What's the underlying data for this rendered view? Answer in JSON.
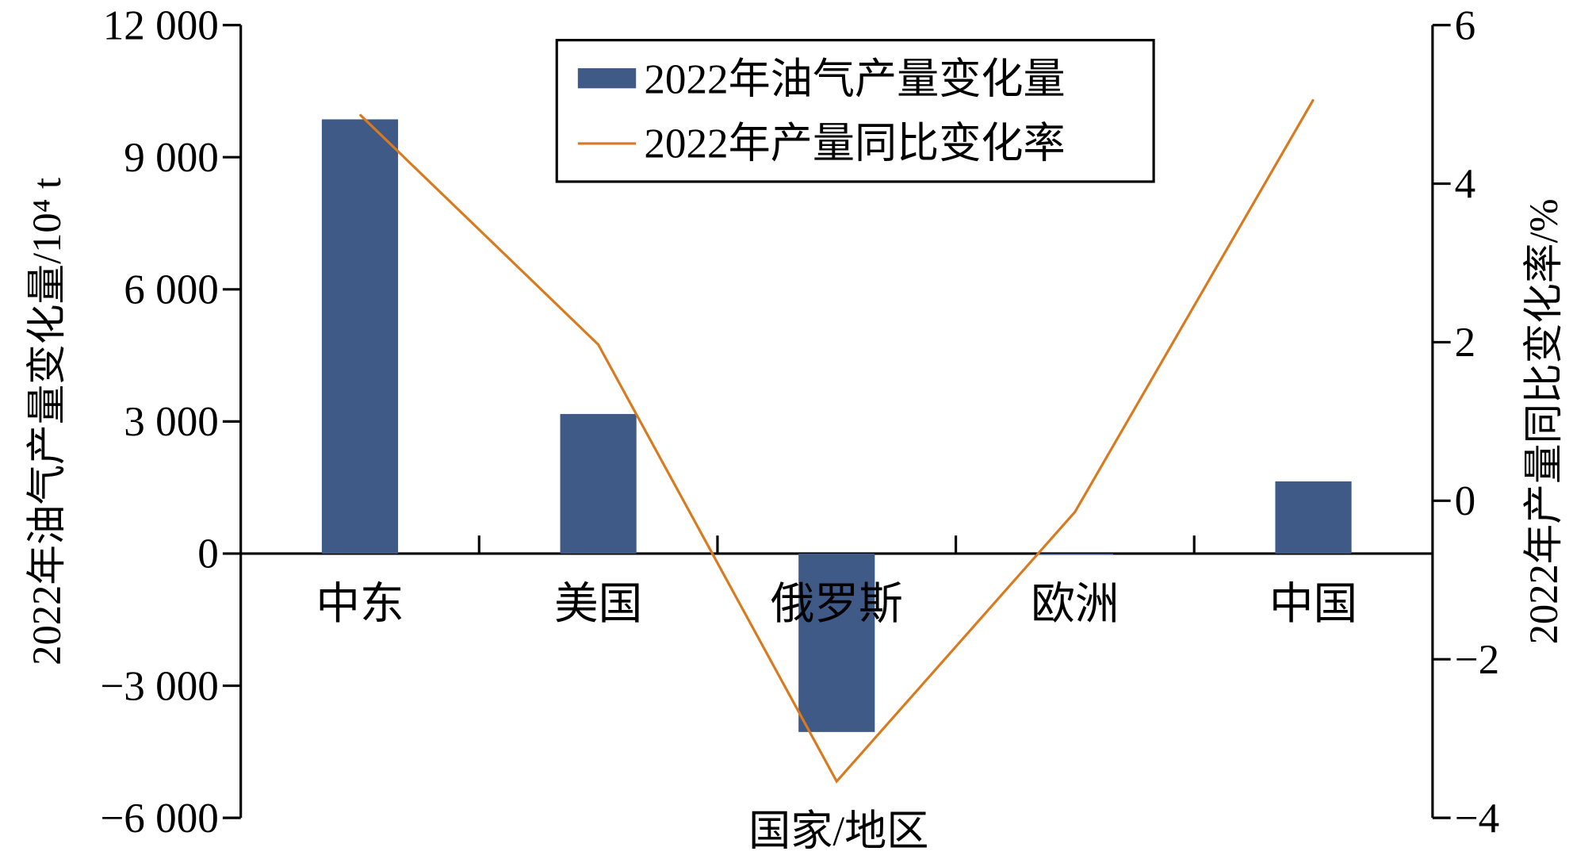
{
  "chart_data": {
    "type": "bar+line",
    "categories": [
      "中东",
      "美国",
      "俄罗斯",
      "欧洲",
      "中国"
    ],
    "xlabel": "国家/地区",
    "ylabel_left": "2022年油气产量变化量/10⁴ t",
    "ylabel_right": "2022年产量同比变化率/%",
    "ylim_left": [
      -6000,
      12000
    ],
    "yticks_left": [
      -6000,
      -3000,
      0,
      3000,
      6000,
      9000,
      12000
    ],
    "ytick_labels_left": [
      "−6 000",
      "−3 000",
      "0",
      "3 000",
      "6 000",
      "9 000",
      "12 000"
    ],
    "ylim_right": [
      -4,
      6
    ],
    "yticks_right": [
      -4,
      -2,
      0,
      2,
      4,
      6
    ],
    "ytick_labels_right": [
      "−4",
      "−2",
      "0",
      "2",
      "4",
      "6"
    ],
    "grid": false,
    "legend_position": "top-center",
    "series": [
      {
        "name": "2022年油气产量变化量",
        "type": "bar",
        "axis": "left",
        "color": "#3f5a87",
        "values": [
          9860,
          3170,
          -4050,
          -30,
          1640
        ]
      },
      {
        "name": "2022年产量同比变化率",
        "type": "line",
        "axis": "right",
        "color": "#d97a1e",
        "values": [
          4.87,
          1.97,
          -3.54,
          -0.14,
          5.06
        ]
      }
    ]
  }
}
